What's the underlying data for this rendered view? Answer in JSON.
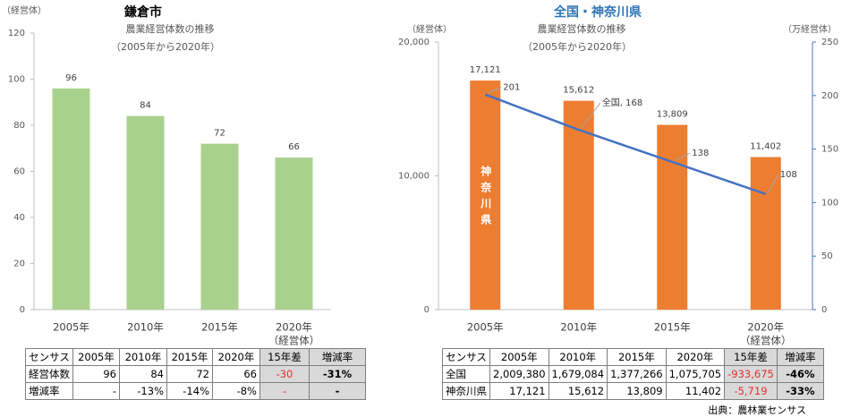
{
  "chart_data": [
    {
      "type": "bar",
      "title": "鎌倉市",
      "subtitle": "農業経営体数の推移",
      "subtitle2": "（2005年から2020年）",
      "y_label": "（経営体）",
      "x_label": "（経営体）",
      "categories": [
        "2005年",
        "2010年",
        "2015年",
        "2020年"
      ],
      "values": [
        96,
        84,
        72,
        66
      ],
      "color": "#a9d18e",
      "ylim": [
        0,
        120
      ],
      "yticks": [
        0,
        20,
        40,
        60,
        80,
        100,
        120
      ]
    },
    {
      "type": "bar",
      "title": "全国・神奈川県",
      "subtitle": "農業経営体数の推移",
      "subtitle2": "（2005年から2020年）",
      "y_label": "（経営体）",
      "y2_label": "（万経営体）",
      "x_label": "（経営体）",
      "categories": [
        "2005年",
        "2010年",
        "2015年",
        "2020年"
      ],
      "series": [
        {
          "name": "神奈川県",
          "type": "bar",
          "color": "#ed7d31",
          "values": [
            17121,
            15612,
            13809,
            11402
          ],
          "value_labels": [
            "17,121",
            "15,612",
            "13,809",
            "11,402"
          ]
        },
        {
          "name": "全国",
          "type": "line",
          "axis": "y2",
          "color": "#4472c4",
          "values": [
            201,
            168,
            138,
            108
          ],
          "value_labels": [
            "201",
            "全国, 168",
            "138",
            "108"
          ]
        }
      ],
      "ylim": [
        0,
        20000
      ],
      "yticks": [
        0,
        {
          "value": 10000,
          "label": "10,000"
        },
        {
          "value": 20000,
          "label": "20,000"
        }
      ],
      "y2lim": [
        0,
        250
      ],
      "y2ticks": [
        0,
        50,
        100,
        150,
        200,
        250
      ]
    }
  ],
  "tables": [
    {
      "header": [
        "センサス",
        "2005年",
        "2010年",
        "2015年",
        "2020年",
        "15年差",
        "増減率"
      ],
      "rows": [
        [
          "経営体数",
          "96",
          "84",
          "72",
          "66",
          "-30",
          "-31%"
        ],
        [
          "増減率",
          "-",
          "-13%",
          "-14%",
          "-8%",
          "-",
          "-"
        ]
      ]
    },
    {
      "header": [
        "センサス",
        "2005年",
        "2010年",
        "2015年",
        "2020年",
        "15年差",
        "増減率"
      ],
      "rows": [
        [
          "全国",
          "2,009,380",
          "1,679,084",
          "1,377,266",
          "1,075,705",
          "-933,675",
          "-46%"
        ],
        [
          "神奈川県",
          "17,121",
          "15,612",
          "13,809",
          "11,402",
          "-5,719",
          "-33%"
        ]
      ]
    }
  ],
  "source": "出典：農林業センサス"
}
